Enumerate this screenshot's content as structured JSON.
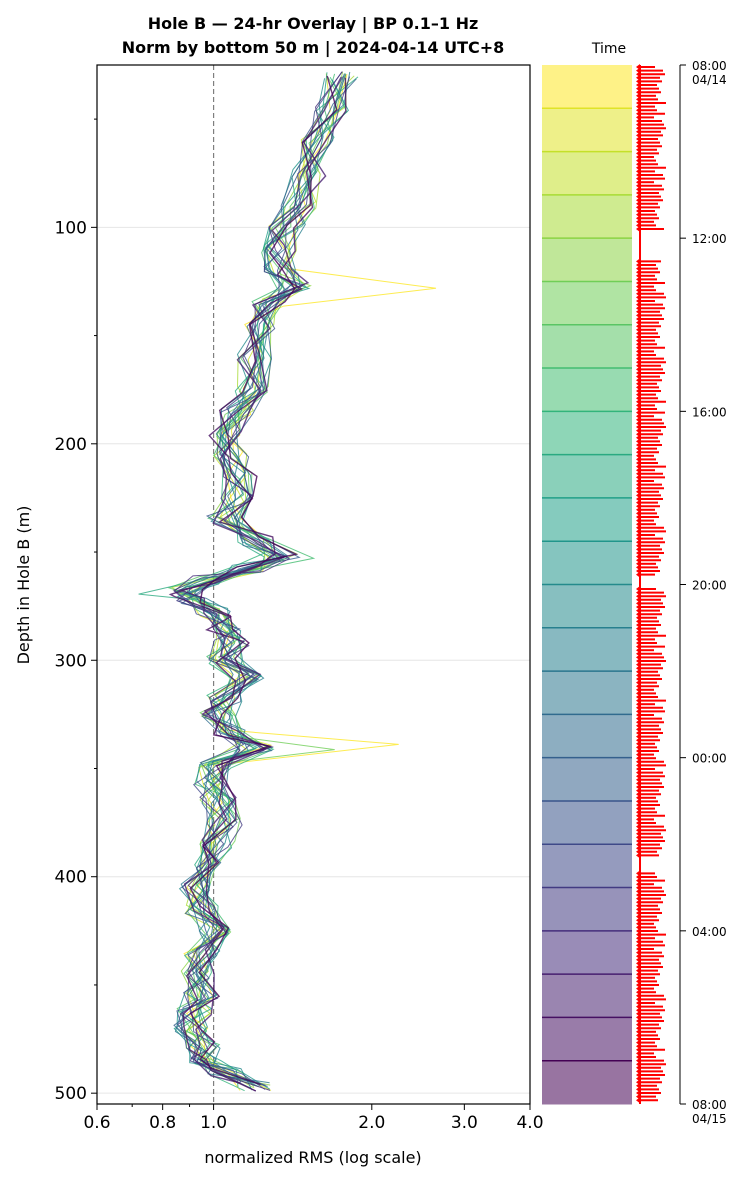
{
  "chart_data": {
    "type": "line",
    "title": "Hole B — 24-hr Overlay  |  BP 0.1–1 Hz",
    "subtitle": "Norm by bottom 50 m  |  2024-04-14 UTC+8",
    "xlabel": "normalized RMS  (log scale)",
    "ylabel": "Depth in Hole B (m)",
    "xscale": "log",
    "xlim": [
      0.6,
      4.0
    ],
    "ylim": [
      505,
      25
    ],
    "x_ticks": [
      "0.6",
      "0.8",
      "1.0",
      "2.0",
      "3.0",
      "4.0"
    ],
    "y_ticks": [
      "100",
      "200",
      "300",
      "400",
      "500"
    ],
    "reference_line_x": 1.0,
    "grid": true,
    "series_count": 24,
    "mean_profile": {
      "depth": [
        30,
        45,
        60,
        75,
        90,
        100,
        110,
        120,
        127,
        135,
        145,
        160,
        175,
        185,
        195,
        205,
        215,
        225,
        235,
        245,
        252,
        258,
        263,
        268,
        272,
        278,
        285,
        292,
        300,
        308,
        318,
        325,
        333,
        340,
        348,
        356,
        365,
        375,
        385,
        395,
        405,
        415,
        425,
        435,
        445,
        455,
        462,
        470,
        478,
        485,
        490,
        497
      ],
      "rms": [
        1.75,
        1.68,
        1.58,
        1.52,
        1.45,
        1.38,
        1.33,
        1.35,
        1.42,
        1.28,
        1.22,
        1.2,
        1.18,
        1.1,
        1.05,
        1.08,
        1.12,
        1.1,
        1.05,
        1.2,
        1.35,
        1.15,
        0.98,
        0.88,
        0.9,
        1.0,
        1.05,
        1.08,
        1.05,
        1.15,
        1.05,
        1.02,
        1.08,
        1.2,
        1.0,
        0.98,
        1.02,
        1.05,
        1.02,
        0.98,
        0.92,
        0.95,
        1.0,
        0.95,
        0.93,
        0.95,
        0.92,
        0.9,
        0.95,
        0.97,
        1.05,
        1.2
      ]
    },
    "colorbar": {
      "label": "Time",
      "ticks": [
        "08:00\n04/14",
        "12:00",
        "16:00",
        "20:00",
        "00:00",
        "04:00",
        "08:00\n04/15"
      ],
      "colormap": "viridis-reversed",
      "bands": 24
    },
    "outlier_peaks": [
      {
        "depth": 127,
        "rms": 2.65
      },
      {
        "depth": 342,
        "rms": 2.25
      }
    ],
    "marker_color": "#ff0000"
  }
}
